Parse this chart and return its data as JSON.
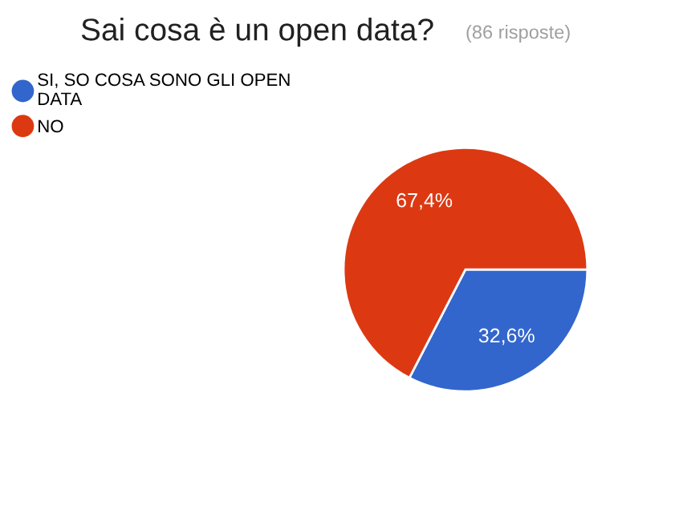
{
  "chart_data": {
    "type": "pie",
    "title": "Sai cosa è un open data?",
    "subtitle": "(86 risposte)",
    "categories": [
      "SI, SO COSA SONO GLI OPEN\nDATA",
      "NO"
    ],
    "values": [
      32.6,
      67.4
    ],
    "value_labels": [
      "32,6%",
      "67,4%"
    ],
    "colors": [
      "#3366cc",
      "#dc3912"
    ],
    "legend": "top left"
  }
}
